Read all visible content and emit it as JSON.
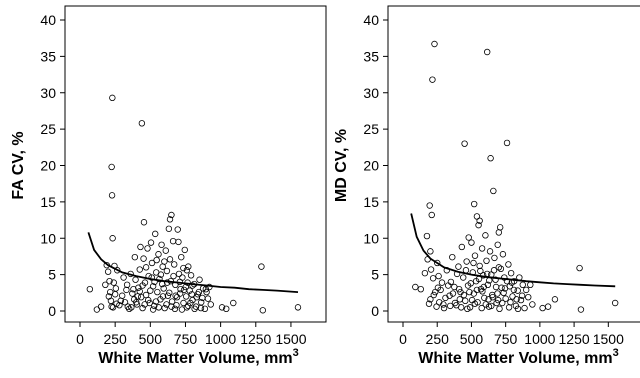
{
  "chart_data": [
    {
      "type": "scatter",
      "xlabel": "White Matter Volume, mm",
      "xlabel_sup": "3",
      "ylabel": "FA CV, %",
      "xlim": [
        0,
        1600
      ],
      "ylim": [
        0,
        40
      ],
      "xticks": [
        "0",
        "250",
        "500",
        "750",
        "1000",
        "1250",
        "1500"
      ],
      "yticks": [
        "0",
        "5",
        "10",
        "15",
        "20",
        "25",
        "30",
        "35",
        "40"
      ],
      "grid": false,
      "marker": "open-circle",
      "fit_curve": {
        "x": [
          60,
          100,
          150,
          200,
          300,
          400,
          500,
          600,
          700,
          800,
          900,
          1000,
          1100,
          1200,
          1300,
          1400,
          1550
        ],
        "y": [
          10.8,
          8.4,
          7.1,
          6.3,
          5.3,
          4.8,
          4.4,
          4.1,
          3.9,
          3.7,
          3.5,
          3.3,
          3.2,
          3.0,
          2.9,
          2.8,
          2.6
        ]
      },
      "points": [
        [
          230,
          29.3
        ],
        [
          440,
          25.8
        ],
        [
          225,
          19.8
        ],
        [
          228,
          15.9
        ],
        [
          232,
          10.0
        ],
        [
          650,
          13.2
        ],
        [
          640,
          12.6
        ],
        [
          455,
          12.2
        ],
        [
          1290,
          6.1
        ],
        [
          1550,
          0.5
        ],
        [
          1300,
          0.1
        ],
        [
          1090,
          1.1
        ],
        [
          1040,
          0.3
        ],
        [
          1010,
          0.5
        ],
        [
          70,
          3.0
        ],
        [
          120,
          0.2
        ],
        [
          150,
          0.6
        ],
        [
          180,
          3.6
        ],
        [
          190,
          6.3
        ],
        [
          200,
          5.4
        ],
        [
          210,
          4.1
        ],
        [
          215,
          2.6
        ],
        [
          220,
          1.4
        ],
        [
          235,
          0.5
        ],
        [
          245,
          6.2
        ],
        [
          255,
          3.1
        ],
        [
          265,
          5.6
        ],
        [
          280,
          0.8
        ],
        [
          300,
          2.1
        ],
        [
          310,
          4.6
        ],
        [
          320,
          1.2
        ],
        [
          335,
          3.6
        ],
        [
          350,
          0.3
        ],
        [
          360,
          5.1
        ],
        [
          372,
          2.4
        ],
        [
          385,
          1.6
        ],
        [
          395,
          4.3
        ],
        [
          405,
          0.9
        ],
        [
          415,
          3.2
        ],
        [
          425,
          5.7
        ],
        [
          435,
          1.9
        ],
        [
          445,
          0.4
        ],
        [
          452,
          7.2
        ],
        [
          462,
          3.9
        ],
        [
          470,
          2.2
        ],
        [
          480,
          8.6
        ],
        [
          488,
          4.8
        ],
        [
          495,
          1.1
        ],
        [
          505,
          9.4
        ],
        [
          512,
          6.6
        ],
        [
          520,
          3.4
        ],
        [
          528,
          0.7
        ],
        [
          535,
          10.6
        ],
        [
          542,
          5.3
        ],
        [
          550,
          2.6
        ],
        [
          558,
          7.8
        ],
        [
          565,
          4.4
        ],
        [
          572,
          1.6
        ],
        [
          580,
          9.1
        ],
        [
          588,
          6.1
        ],
        [
          595,
          3.1
        ],
        [
          602,
          0.4
        ],
        [
          610,
          8.3
        ],
        [
          618,
          5.5
        ],
        [
          625,
          2.1
        ],
        [
          632,
          11.3
        ],
        [
          640,
          7.1
        ],
        [
          646,
          4.1
        ],
        [
          655,
          1.3
        ],
        [
          662,
          9.6
        ],
        [
          670,
          6.4
        ],
        [
          678,
          3.6
        ],
        [
          686,
          0.8
        ],
        [
          695,
          11.2
        ],
        [
          704,
          5.1
        ],
        [
          712,
          2.4
        ],
        [
          720,
          7.4
        ],
        [
          728,
          4.6
        ],
        [
          736,
          1.1
        ],
        [
          745,
          8.4
        ],
        [
          752,
          3.3
        ],
        [
          760,
          0.5
        ],
        [
          770,
          6.1
        ],
        [
          780,
          2.8
        ],
        [
          790,
          4.9
        ],
        [
          800,
          1.5
        ],
        [
          812,
          3.7
        ],
        [
          825,
          0.6
        ],
        [
          838,
          2.3
        ],
        [
          850,
          4.3
        ],
        [
          862,
          1.2
        ],
        [
          875,
          3.1
        ],
        [
          888,
          0.3
        ],
        [
          900,
          2.6
        ],
        [
          910,
          1.7
        ],
        [
          920,
          3.3
        ],
        [
          930,
          0.9
        ],
        [
          260,
          1.0
        ],
        [
          340,
          0.6
        ],
        [
          380,
          3.0
        ],
        [
          410,
          2.0
        ],
        [
          460,
          0.9
        ],
        [
          500,
          2.8
        ],
        [
          530,
          4.0
        ],
        [
          560,
          0.5
        ],
        [
          590,
          2.0
        ],
        [
          620,
          3.9
        ],
        [
          650,
          0.6
        ],
        [
          680,
          2.1
        ],
        [
          710,
          4.0
        ],
        [
          740,
          2.9
        ],
        [
          770,
          0.7
        ],
        [
          800,
          3.5
        ],
        [
          830,
          1.9
        ],
        [
          860,
          0.4
        ],
        [
          390,
          7.4
        ],
        [
          430,
          8.8
        ],
        [
          470,
          6.0
        ],
        [
          510,
          4.6
        ],
        [
          545,
          7.0
        ],
        [
          600,
          6.8
        ],
        [
          700,
          9.5
        ],
        [
          760,
          5.6
        ],
        [
          205,
          2.0
        ],
        [
          240,
          3.9
        ],
        [
          290,
          1.4
        ],
        [
          330,
          2.9
        ],
        [
          445,
          3.5
        ],
        [
          485,
          1.5
        ],
        [
          520,
          0.2
        ],
        [
          575,
          5.0
        ],
        [
          615,
          0.9
        ],
        [
          665,
          4.8
        ],
        [
          690,
          1.9
        ],
        [
          725,
          0.2
        ],
        [
          755,
          2.0
        ],
        [
          785,
          1.1
        ],
        [
          815,
          0.3
        ],
        [
          845,
          2.6
        ],
        [
          870,
          1.8
        ],
        [
          895,
          3.0
        ],
        [
          225,
          0.6
        ],
        [
          250,
          2.3
        ],
        [
          365,
          0.5
        ],
        [
          400,
          1.2
        ],
        [
          425,
          2.7
        ],
        [
          540,
          1.3
        ],
        [
          585,
          3.7
        ],
        [
          635,
          2.5
        ],
        [
          675,
          0.3
        ],
        [
          715,
          3.0
        ],
        [
          735,
          5.9
        ],
        [
          765,
          3.9
        ],
        [
          795,
          2.3
        ]
      ]
    },
    {
      "type": "scatter",
      "xlabel": "White Matter Volume, mm",
      "xlabel_sup": "3",
      "ylabel": "MD CV, %",
      "xlim": [
        0,
        1600
      ],
      "ylim": [
        0,
        40
      ],
      "xticks": [
        "0",
        "250",
        "500",
        "750",
        "1000",
        "1250",
        "1500"
      ],
      "yticks": [
        "0",
        "5",
        "10",
        "15",
        "20",
        "25",
        "30",
        "35",
        "40"
      ],
      "grid": false,
      "marker": "open-circle",
      "fit_curve": {
        "x": [
          60,
          100,
          150,
          200,
          300,
          400,
          500,
          600,
          700,
          800,
          900,
          1000,
          1100,
          1200,
          1300,
          1400,
          1550
        ],
        "y": [
          13.4,
          10.2,
          8.3,
          7.2,
          6.0,
          5.4,
          5.0,
          4.7,
          4.5,
          4.3,
          4.1,
          3.95,
          3.8,
          3.7,
          3.6,
          3.5,
          3.4
        ]
      },
      "points": [
        [
          230,
          36.7
        ],
        [
          615,
          35.6
        ],
        [
          215,
          31.8
        ],
        [
          450,
          23.0
        ],
        [
          760,
          23.1
        ],
        [
          640,
          21.0
        ],
        [
          660,
          16.5
        ],
        [
          520,
          14.7
        ],
        [
          195,
          14.5
        ],
        [
          210,
          13.2
        ],
        [
          540,
          13.0
        ],
        [
          560,
          12.4
        ],
        [
          710,
          11.5
        ],
        [
          700,
          10.8
        ],
        [
          480,
          10.1
        ],
        [
          175,
          10.3
        ],
        [
          1290,
          5.9
        ],
        [
          1550,
          1.1
        ],
        [
          1300,
          0.2
        ],
        [
          1110,
          1.6
        ],
        [
          1060,
          0.6
        ],
        [
          1020,
          0.4
        ],
        [
          90,
          3.3
        ],
        [
          130,
          3.0
        ],
        [
          160,
          5.2
        ],
        [
          180,
          7.1
        ],
        [
          200,
          8.2
        ],
        [
          220,
          4.5
        ],
        [
          235,
          2.6
        ],
        [
          250,
          6.6
        ],
        [
          265,
          1.2
        ],
        [
          285,
          3.9
        ],
        [
          300,
          0.4
        ],
        [
          320,
          5.6
        ],
        [
          340,
          2.1
        ],
        [
          360,
          7.4
        ],
        [
          375,
          3.3
        ],
        [
          390,
          0.8
        ],
        [
          405,
          6.1
        ],
        [
          420,
          2.6
        ],
        [
          430,
          8.8
        ],
        [
          440,
          4.6
        ],
        [
          455,
          1.4
        ],
        [
          465,
          6.8
        ],
        [
          475,
          3.5
        ],
        [
          490,
          0.5
        ],
        [
          500,
          9.4
        ],
        [
          510,
          5.3
        ],
        [
          518,
          2.4
        ],
        [
          526,
          7.6
        ],
        [
          534,
          4.1
        ],
        [
          545,
          1.2
        ],
        [
          552,
          11.8
        ],
        [
          560,
          6.2
        ],
        [
          570,
          3.0
        ],
        [
          578,
          8.6
        ],
        [
          586,
          4.9
        ],
        [
          594,
          1.8
        ],
        [
          602,
          10.4
        ],
        [
          610,
          6.9
        ],
        [
          620,
          3.6
        ],
        [
          628,
          0.6
        ],
        [
          636,
          8.2
        ],
        [
          645,
          5.0
        ],
        [
          652,
          2.2
        ],
        [
          668,
          7.3
        ],
        [
          676,
          4.3
        ],
        [
          684,
          1.1
        ],
        [
          692,
          9.1
        ],
        [
          700,
          6.0
        ],
        [
          720,
          3.2
        ],
        [
          730,
          7.8
        ],
        [
          740,
          4.6
        ],
        [
          750,
          1.7
        ],
        [
          770,
          6.4
        ],
        [
          780,
          3.4
        ],
        [
          790,
          5.2
        ],
        [
          800,
          2.0
        ],
        [
          812,
          4.1
        ],
        [
          825,
          0.7
        ],
        [
          838,
          2.8
        ],
        [
          850,
          4.6
        ],
        [
          862,
          1.5
        ],
        [
          875,
          3.6
        ],
        [
          888,
          0.4
        ],
        [
          900,
          2.9
        ],
        [
          915,
          1.9
        ],
        [
          930,
          3.6
        ],
        [
          945,
          0.9
        ],
        [
          190,
          1.0
        ],
        [
          245,
          0.6
        ],
        [
          275,
          2.9
        ],
        [
          310,
          1.8
        ],
        [
          350,
          4.0
        ],
        [
          380,
          1.1
        ],
        [
          410,
          3.0
        ],
        [
          445,
          2.2
        ],
        [
          470,
          0.3
        ],
        [
          495,
          3.8
        ],
        [
          525,
          1.0
        ],
        [
          555,
          4.4
        ],
        [
          580,
          2.7
        ],
        [
          605,
          0.9
        ],
        [
          630,
          4.2
        ],
        [
          655,
          1.9
        ],
        [
          680,
          3.3
        ],
        [
          705,
          0.3
        ],
        [
          735,
          2.5
        ],
        [
          760,
          4.1
        ],
        [
          785,
          1.2
        ],
        [
          810,
          2.9
        ],
        [
          840,
          0.3
        ],
        [
          870,
          2.1
        ],
        [
          205,
          5.7
        ],
        [
          260,
          4.8
        ],
        [
          330,
          3.5
        ],
        [
          395,
          5.1
        ],
        [
          460,
          5.6
        ],
        [
          515,
          6.6
        ],
        [
          565,
          5.5
        ],
        [
          615,
          5.1
        ],
        [
          665,
          5.6
        ],
        [
          715,
          5.8
        ],
        [
          745,
          3.1
        ],
        [
          795,
          3.9
        ],
        [
          225,
          2.2
        ],
        [
          295,
          0.9
        ],
        [
          365,
          2.4
        ],
        [
          425,
          0.5
        ],
        [
          485,
          2.6
        ],
        [
          540,
          2.9
        ],
        [
          590,
          3.3
        ],
        [
          645,
          0.7
        ],
        [
          690,
          2.4
        ],
        [
          725,
          1.1
        ],
        [
          775,
          0.5
        ],
        [
          830,
          1.6
        ],
        [
          200,
          1.6
        ],
        [
          255,
          3.2
        ],
        [
          345,
          0.7
        ],
        [
          415,
          1.6
        ],
        [
          505,
          1.5
        ],
        [
          575,
          0.4
        ],
        [
          625,
          1.6
        ],
        [
          695,
          1.5
        ]
      ]
    }
  ]
}
